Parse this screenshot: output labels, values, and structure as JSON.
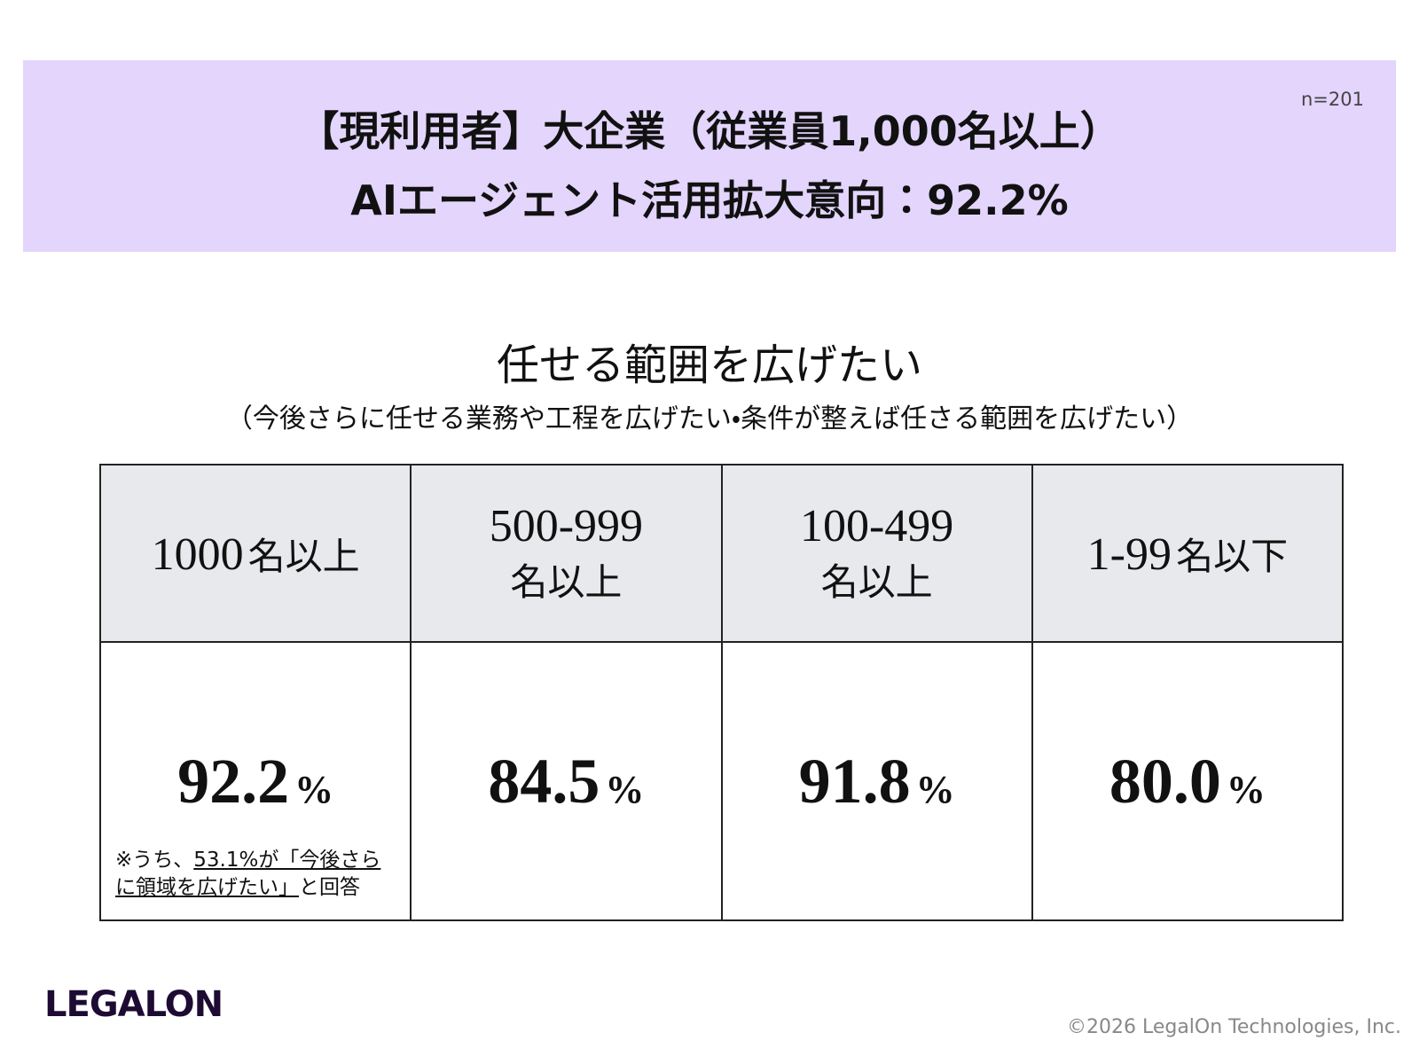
{
  "header": {
    "title_line1": "【現利用者】大企業（従業員1,000名以上）",
    "title_line2": "AIエージェント活用拡大意向：92.2%",
    "sample": "n=201"
  },
  "section": {
    "title": "任せる範囲を広げたい",
    "subtitle": "（今後さらに任せる業務や工程を広げたい・条件が整えば任さる範囲を広げたい）"
  },
  "table": {
    "headers": [
      {
        "number": "1000",
        "unit": "名以上"
      },
      {
        "number": "500-999",
        "unit": "名以上"
      },
      {
        "number": "100-499",
        "unit": "名以上"
      },
      {
        "number": "1-99",
        "unit": "名以下"
      }
    ],
    "cells": [
      {
        "value": "92.2",
        "unit": "%"
      },
      {
        "value": "84.5",
        "unit": "%"
      },
      {
        "value": "91.8",
        "unit": "%"
      },
      {
        "value": "80.0",
        "unit": "%"
      }
    ],
    "note": {
      "prefix": "※うち、",
      "underlined": "53.1%が「今後さらに領域を広げたい」",
      "suffix": "と回答"
    }
  },
  "footer": {
    "logo": "LEGALON",
    "copyright": "©2026 LegalOn Technologies, Inc."
  }
}
